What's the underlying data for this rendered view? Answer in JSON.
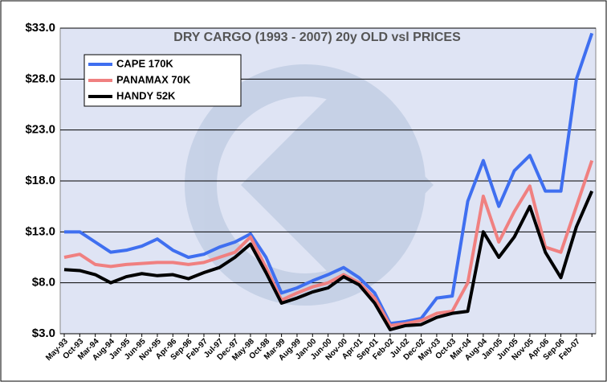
{
  "chart_data": {
    "type": "line",
    "title": "DRY CARGO (1993 - 2007) 20y OLD vsl PRICES",
    "categories": [
      "May-93",
      "Oct-93",
      "Mar-94",
      "Aug-94",
      "Jan-95",
      "Jun-95",
      "Nov-95",
      "Apr-96",
      "Sep-96",
      "Feb-97",
      "Jul-97",
      "Dec-97",
      "May-98",
      "Oct-98",
      "Mar-99",
      "Aug-99",
      "Jan-00",
      "Jun-00",
      "Nov-00",
      "Apr-01",
      "Sep-01",
      "Feb-02",
      "Jul-02",
      "Dec-02",
      "May-03",
      "Oct-03",
      "Mar-04",
      "Aug-04",
      "Jan-05",
      "Jun-05",
      "Nov-05",
      "Apr-06",
      "Sep-06",
      "Feb-07",
      null
    ],
    "series": [
      {
        "name": "CAPE 170K",
        "color": "#3f6ff0",
        "values": [
          13.0,
          13.0,
          12.0,
          11.0,
          11.2,
          11.6,
          12.3,
          11.2,
          10.5,
          10.8,
          11.5,
          12.0,
          12.8,
          10.5,
          7.0,
          7.5,
          8.2,
          8.8,
          9.5,
          8.5,
          7.0,
          4.0,
          4.2,
          4.5,
          6.5,
          6.7,
          16.0,
          20.0,
          15.5,
          19.0,
          20.5,
          17.0,
          17.0,
          28.0,
          32.5
        ]
      },
      {
        "name": "PANAMAX 70K",
        "color": "#f08080",
        "values": [
          10.5,
          10.8,
          9.8,
          9.6,
          9.8,
          9.9,
          10.0,
          10.0,
          9.8,
          10.0,
          10.5,
          11.0,
          12.5,
          9.5,
          6.3,
          7.0,
          7.6,
          8.0,
          8.8,
          8.0,
          6.5,
          3.8,
          4.0,
          4.3,
          5.0,
          5.2,
          8.0,
          16.5,
          12.0,
          15.0,
          17.5,
          11.5,
          11.0,
          15.5,
          20.0
        ]
      },
      {
        "name": "HANDY 52K",
        "color": "#000000",
        "values": [
          9.3,
          9.2,
          8.8,
          8.0,
          8.6,
          8.9,
          8.7,
          8.8,
          8.4,
          9.0,
          9.5,
          10.5,
          11.8,
          9.0,
          6.0,
          6.5,
          7.1,
          7.5,
          8.6,
          7.8,
          6.0,
          3.4,
          3.8,
          3.9,
          4.6,
          5.0,
          5.2,
          13.0,
          10.5,
          12.5,
          15.5,
          11.0,
          8.5,
          13.5,
          17.0
        ]
      }
    ],
    "ylim": [
      3,
      33
    ],
    "yticks": [
      {
        "value": 3,
        "label": "$3.0"
      },
      {
        "value": 8,
        "label": "$8.0"
      },
      {
        "value": 13,
        "label": "$13.0"
      },
      {
        "value": 18,
        "label": "$18.0"
      },
      {
        "value": 23,
        "label": "$23.0"
      },
      {
        "value": 28,
        "label": "$28.0"
      },
      {
        "value": 33,
        "label": "$33.0"
      }
    ],
    "grid": true,
    "legend": "upper left"
  }
}
